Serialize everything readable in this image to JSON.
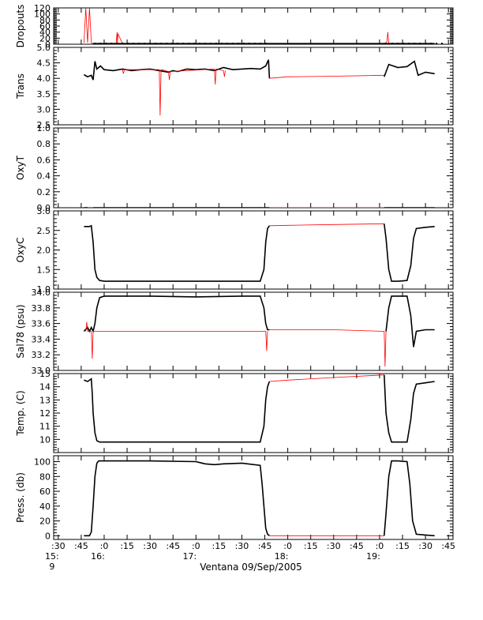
{
  "figure": {
    "xlabel": "Ventana 09/Sep/2005"
  },
  "chart_data": [
    {
      "type": "line",
      "ylabel": "Dropouts",
      "ylim": [
        0,
        120
      ],
      "yticks": [
        0,
        20,
        40,
        60,
        80,
        100,
        120
      ],
      "yticklabels": [
        "0",
        "20",
        "40",
        "60",
        "80",
        "100",
        "120"
      ],
      "series": [
        {
          "color": "#ff0000",
          "x": [
            15.78,
            15.79,
            15.8,
            15.82,
            15.84,
            15.86,
            15.88,
            16.13,
            16.14,
            16.145,
            16.15,
            16.2,
            17.0,
            17.5,
            18.0,
            18.5,
            19.05,
            19.08,
            19.09,
            19.1,
            19.2,
            19.5
          ],
          "y": [
            5,
            60,
            120,
            5,
            120,
            5,
            2,
            2,
            40,
            2,
            35,
            2,
            2,
            2,
            2,
            2,
            2,
            8,
            40,
            2,
            2,
            2
          ]
        },
        {
          "color": "#000000",
          "x": [
            15.88,
            16.2,
            16.6,
            17.0,
            17.4,
            17.79,
            19.1,
            19.5,
            19.6
          ],
          "y": [
            2,
            2,
            2,
            2,
            2,
            2,
            2,
            2,
            2
          ]
        }
      ]
    },
    {
      "type": "line",
      "ylabel": "Trans",
      "ylim": [
        2.5,
        5.0
      ],
      "yticks": [
        2.5,
        3.0,
        3.5,
        4.0,
        4.5,
        5.0
      ],
      "yticklabels": [
        "2.5",
        "3.0",
        "3.5",
        "4.0",
        "4.5",
        "5.0"
      ],
      "series": [
        {
          "color": "#000000",
          "x": [
            15.78,
            15.82,
            15.86,
            15.88,
            15.9,
            15.92,
            15.96,
            16.0,
            16.1,
            16.2,
            16.3,
            16.4,
            16.5,
            16.6,
            16.7,
            16.75,
            16.8,
            16.9,
            17.0,
            17.1,
            17.2,
            17.3,
            17.4,
            17.5,
            17.6,
            17.7,
            17.76,
            17.79,
            17.8
          ],
          "y": [
            4.12,
            4.05,
            4.1,
            3.95,
            4.55,
            4.3,
            4.4,
            4.28,
            4.25,
            4.3,
            4.25,
            4.28,
            4.3,
            4.25,
            4.2,
            4.25,
            4.22,
            4.3,
            4.28,
            4.3,
            4.25,
            4.35,
            4.28,
            4.3,
            4.32,
            4.3,
            4.4,
            4.6,
            4.0
          ]
        },
        {
          "color": "#ff0000",
          "x": [
            17.8,
            18.0,
            18.5,
            19.05
          ],
          "y": [
            4.0,
            4.05,
            4.07,
            4.1
          ]
        },
        {
          "color": "#000000",
          "x": [
            19.05,
            19.1,
            19.2,
            19.3,
            19.38,
            19.42,
            19.5,
            19.6
          ],
          "y": [
            4.05,
            4.45,
            4.35,
            4.38,
            4.55,
            4.1,
            4.2,
            4.15
          ]
        },
        {
          "color": "#ff0000",
          "x": [
            16.2,
            16.21,
            16.22,
            16.6,
            16.61,
            16.62,
            16.7,
            16.71,
            16.72,
            17.2,
            17.21,
            17.22,
            17.3,
            17.31,
            17.32
          ],
          "y": [
            4.28,
            4.15,
            4.28,
            4.28,
            2.8,
            4.28,
            4.22,
            3.95,
            4.22,
            4.3,
            3.8,
            4.3,
            4.25,
            4.05,
            4.25
          ]
        }
      ]
    },
    {
      "type": "line",
      "ylabel": "OxyT",
      "ylim": [
        0,
        1.0
      ],
      "yticks": [
        0.0,
        0.2,
        0.4,
        0.6,
        0.8,
        1.0
      ],
      "yticklabels": [
        "0.0",
        "0.2",
        "0.4",
        "0.6",
        "0.8",
        "1.0"
      ],
      "series": [
        {
          "color": "#000000",
          "x": [
            15.78,
            15.82
          ],
          "y": [
            0.0,
            0.0
          ]
        },
        {
          "color": "#000000",
          "x": [
            15.88,
            16.5,
            17.0,
            17.8
          ],
          "y": [
            0.0,
            0.0,
            0.0,
            0.0
          ]
        },
        {
          "color": "#ff0000",
          "x": [
            17.8,
            18.5,
            19.05
          ],
          "y": [
            0.0,
            0.0,
            0.0
          ]
        },
        {
          "color": "#000000",
          "x": [
            19.05,
            19.3,
            19.6
          ],
          "y": [
            0.0,
            0.0,
            0.0
          ]
        }
      ]
    },
    {
      "type": "line",
      "ylabel": "OxyC",
      "ylim": [
        1.0,
        3.0
      ],
      "yticks": [
        1.0,
        1.5,
        2.0,
        2.5,
        3.0
      ],
      "yticklabels": [
        "1.0",
        "1.5",
        "2.0",
        "2.5",
        "3.0"
      ],
      "series": [
        {
          "color": "#000000",
          "x": [
            15.78,
            15.84,
            15.86,
            15.88,
            15.9,
            15.92,
            15.95,
            16.0,
            16.5,
            17.0,
            17.5,
            17.7,
            17.74,
            17.76,
            17.78,
            17.8
          ],
          "y": [
            2.6,
            2.6,
            2.62,
            2.2,
            1.5,
            1.3,
            1.22,
            1.2,
            1.2,
            1.2,
            1.2,
            1.2,
            1.5,
            2.2,
            2.55,
            2.62
          ]
        },
        {
          "color": "#ff0000",
          "x": [
            17.8,
            18.0,
            18.5,
            19.05
          ],
          "y": [
            2.62,
            2.63,
            2.65,
            2.67
          ]
        },
        {
          "color": "#000000",
          "x": [
            19.05,
            19.07,
            19.1,
            19.13,
            19.2,
            19.3,
            19.34,
            19.37,
            19.4,
            19.5,
            19.6
          ],
          "y": [
            2.67,
            2.3,
            1.5,
            1.2,
            1.2,
            1.22,
            1.6,
            2.3,
            2.55,
            2.58,
            2.6
          ]
        }
      ]
    },
    {
      "type": "line",
      "ylabel": "Sal78 (psu)",
      "ylim": [
        33.0,
        34.0
      ],
      "yticks": [
        33.0,
        33.2,
        33.4,
        33.6,
        33.8,
        34.0
      ],
      "yticklabels": [
        "33.0",
        "33.2",
        "33.4",
        "33.6",
        "33.8",
        "34.0"
      ],
      "series": [
        {
          "color": "#000000",
          "x": [
            15.78,
            15.82,
            15.84,
            15.86,
            15.88,
            15.9,
            15.92,
            15.95,
            16.0,
            16.5,
            17.0,
            17.5,
            17.7,
            17.74,
            17.76,
            17.78,
            17.8
          ],
          "y": [
            33.5,
            33.55,
            33.5,
            33.55,
            33.5,
            33.6,
            33.8,
            33.93,
            33.95,
            33.95,
            33.94,
            33.95,
            33.95,
            33.8,
            33.6,
            33.52,
            33.52
          ]
        },
        {
          "color": "#ff0000",
          "x": [
            15.8,
            15.81,
            15.82,
            15.86,
            15.87,
            15.88,
            17.76,
            17.77,
            17.78
          ],
          "y": [
            33.5,
            33.62,
            33.5,
            33.5,
            33.15,
            33.5,
            33.5,
            33.25,
            33.5
          ]
        },
        {
          "color": "#ff0000",
          "x": [
            17.8,
            18.0,
            18.5,
            19.05,
            19.06,
            19.07
          ],
          "y": [
            33.52,
            33.52,
            33.52,
            33.5,
            33.05,
            33.5
          ]
        },
        {
          "color": "#000000",
          "x": [
            19.07,
            19.1,
            19.13,
            19.2,
            19.3,
            19.34,
            19.37,
            19.4,
            19.5,
            19.6
          ],
          "y": [
            33.5,
            33.8,
            33.95,
            33.95,
            33.95,
            33.7,
            33.3,
            33.5,
            33.52,
            33.52
          ]
        }
      ]
    },
    {
      "type": "line",
      "ylabel": "Temp. (C)",
      "ylim": [
        9,
        15
      ],
      "yticks": [
        9,
        10,
        11,
        12,
        13,
        14,
        15
      ],
      "yticklabels": [
        "",
        "10",
        "11",
        "12",
        "13",
        "14",
        "15"
      ],
      "series": [
        {
          "color": "#000000",
          "x": [
            15.78,
            15.82,
            15.86,
            15.87,
            15.88,
            15.9,
            15.92,
            15.95,
            16.0,
            16.5,
            17.0,
            17.5,
            17.7,
            17.74,
            17.76,
            17.78,
            17.8
          ],
          "y": [
            14.5,
            14.4,
            14.6,
            13.5,
            12.0,
            10.5,
            9.9,
            9.8,
            9.8,
            9.8,
            9.8,
            9.8,
            9.8,
            11.0,
            13.0,
            14.0,
            14.4
          ]
        },
        {
          "color": "#ff0000",
          "x": [
            17.8,
            18.0,
            18.5,
            19.05
          ],
          "y": [
            14.4,
            14.5,
            14.7,
            14.9
          ]
        },
        {
          "color": "#000000",
          "x": [
            19.05,
            19.07,
            19.1,
            19.13,
            19.2,
            19.3,
            19.34,
            19.37,
            19.4,
            19.5,
            19.6
          ],
          "y": [
            14.9,
            12.0,
            10.5,
            9.8,
            9.8,
            9.8,
            11.5,
            13.5,
            14.2,
            14.3,
            14.4
          ]
        }
      ]
    },
    {
      "type": "line",
      "ylabel": "Press. (db)",
      "ylim": [
        -5,
        108
      ],
      "yticks": [
        0,
        20,
        40,
        60,
        80,
        100
      ],
      "yticklabels": [
        "0",
        "20",
        "40",
        "60",
        "80",
        "100"
      ],
      "series": [
        {
          "color": "#000000",
          "x": [
            15.78,
            15.84,
            15.86,
            15.88,
            15.9,
            15.92,
            15.94,
            16.0,
            16.5,
            17.0,
            17.1,
            17.2,
            17.3,
            17.5,
            17.7,
            17.72,
            17.74,
            17.76,
            17.78,
            17.8
          ],
          "y": [
            0,
            0,
            5,
            40,
            80,
            98,
            101,
            101,
            101,
            100,
            97,
            96,
            97,
            98,
            95,
            70,
            40,
            10,
            2,
            0
          ]
        },
        {
          "color": "#ff0000",
          "x": [
            17.8,
            18.5,
            19.05
          ],
          "y": [
            0,
            0,
            0
          ]
        },
        {
          "color": "#000000",
          "x": [
            19.05,
            19.07,
            19.1,
            19.13,
            19.2,
            19.3,
            19.33,
            19.36,
            19.4,
            19.5,
            19.6
          ],
          "y": [
            0,
            30,
            80,
            101,
            101,
            100,
            70,
            20,
            2,
            1,
            0
          ]
        }
      ]
    }
  ],
  "x_axis": {
    "xlim": [
      15.45,
      19.8
    ],
    "ticks": [
      15.5,
      15.75,
      16.0,
      16.25,
      16.5,
      16.75,
      17.0,
      17.25,
      17.5,
      17.75,
      18.0,
      18.25,
      18.5,
      18.75,
      19.0,
      19.25,
      19.5,
      19.75
    ],
    "ticklabels": [
      ":30",
      ":45",
      ":0",
      ":15",
      ":30",
      ":45",
      ":0",
      ":15",
      ":30",
      ":45",
      ":0",
      ":15",
      ":30",
      ":45",
      ":0",
      ":15",
      ":30",
      ":45"
    ],
    "hour_labels": [
      {
        "x": 15.5,
        "text": "15:"
      },
      {
        "x": 16.0,
        "text": "16:"
      },
      {
        "x": 17.0,
        "text": "17:"
      },
      {
        "x": 18.0,
        "text": "18:"
      },
      {
        "x": 19.0,
        "text": "19:"
      }
    ],
    "day_label": {
      "x": 15.5,
      "text": "9"
    }
  }
}
